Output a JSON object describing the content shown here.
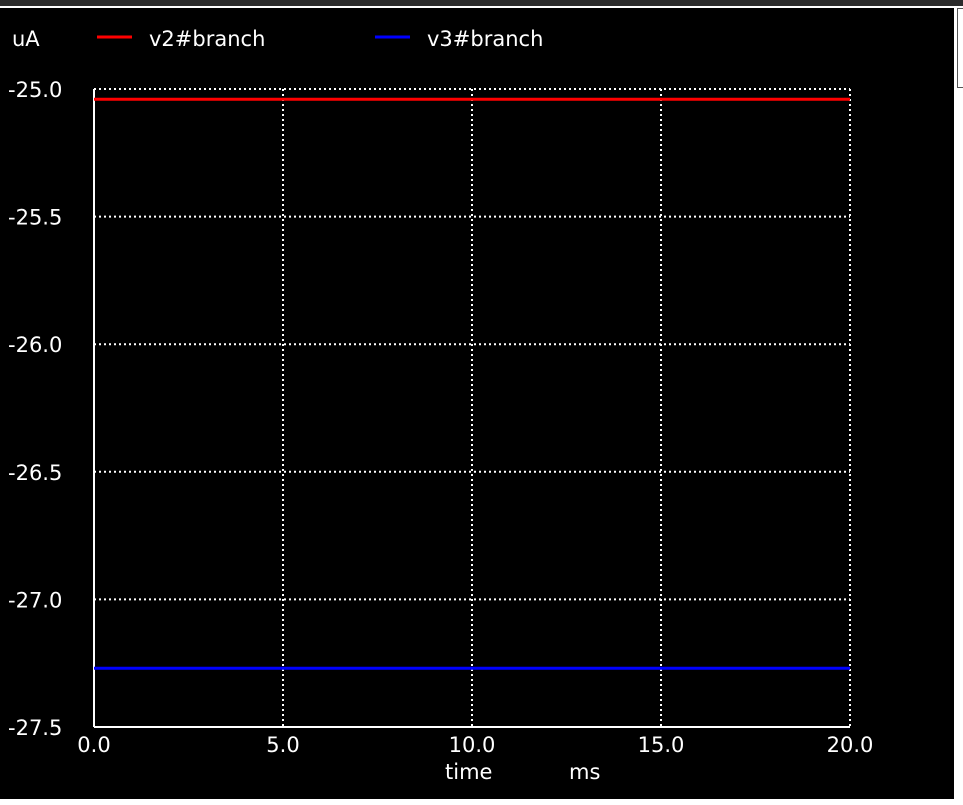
{
  "chart_data": {
    "type": "line",
    "yunit": "uA",
    "xlabel": "time",
    "xunit": "ms",
    "xlim": [
      0.0,
      20.0
    ],
    "ylim": [
      -27.5,
      -25.0
    ],
    "xticks": [
      "0.0",
      "5.0",
      "10.0",
      "15.0",
      "20.0"
    ],
    "yticks": [
      "-25.0",
      "-25.5",
      "-26.0",
      "-26.5",
      "-27.0",
      "-27.5"
    ],
    "grid": true,
    "legend_position": "top",
    "series": [
      {
        "name": "v2#branch",
        "color": "#ff0000",
        "x": [
          0.0,
          20.0
        ],
        "y": [
          -25.04,
          -25.04
        ]
      },
      {
        "name": "v3#branch",
        "color": "#0000ff",
        "x": [
          0.0,
          20.0
        ],
        "y": [
          -27.27,
          -27.27
        ]
      }
    ]
  },
  "colors": {
    "background": "#000000",
    "axis": "#ffffff",
    "grid": "#ffffff",
    "text": "#ffffff"
  }
}
